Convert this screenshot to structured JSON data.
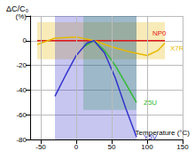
{
  "chart_data": {
    "type": "line",
    "title": "ΔC/C₀",
    "x_label": "Temperature (°C)",
    "xlim": [
      -65,
      150
    ],
    "xticks": [
      -50,
      0,
      50,
      100,
      150
    ],
    "ylim": [
      -80,
      20
    ],
    "yticks": [
      {
        "value": 20,
        "label": "(%)"
      },
      0,
      -20,
      -40,
      -60,
      -80
    ],
    "grid": true,
    "series": [
      {
        "name": "NP0",
        "color": "#e41a1c",
        "x": [
          -55,
          125
        ],
        "values": [
          0,
          0
        ]
      },
      {
        "name": "X7R",
        "color": "#e6b800",
        "x": [
          -55,
          -30,
          0,
          25,
          50,
          75,
          100,
          115,
          125
        ],
        "values": [
          -3,
          2,
          3,
          0,
          -5,
          -9,
          -12,
          -8,
          -2
        ],
        "band": {
          "x": [
            -55,
            125
          ],
          "y": [
            -15,
            15
          ]
        }
      },
      {
        "name": "Z5U",
        "color": "#33bb33",
        "x": [
          10,
          25,
          40,
          55,
          70,
          85
        ],
        "values": [
          -5,
          0,
          -8,
          -20,
          -35,
          -50
        ],
        "band": {
          "x": [
            10,
            85
          ],
          "y": [
            -56,
            20
          ]
        }
      },
      {
        "name": "Y5V",
        "color": "#3333cc",
        "x": [
          -30,
          -15,
          0,
          15,
          25,
          40,
          55,
          70,
          85
        ],
        "values": [
          -45,
          -28,
          -12,
          -2,
          0,
          -10,
          -30,
          -55,
          -78
        ],
        "band": {
          "x": [
            -30,
            85
          ],
          "y": [
            -80,
            20
          ]
        }
      }
    ]
  }
}
